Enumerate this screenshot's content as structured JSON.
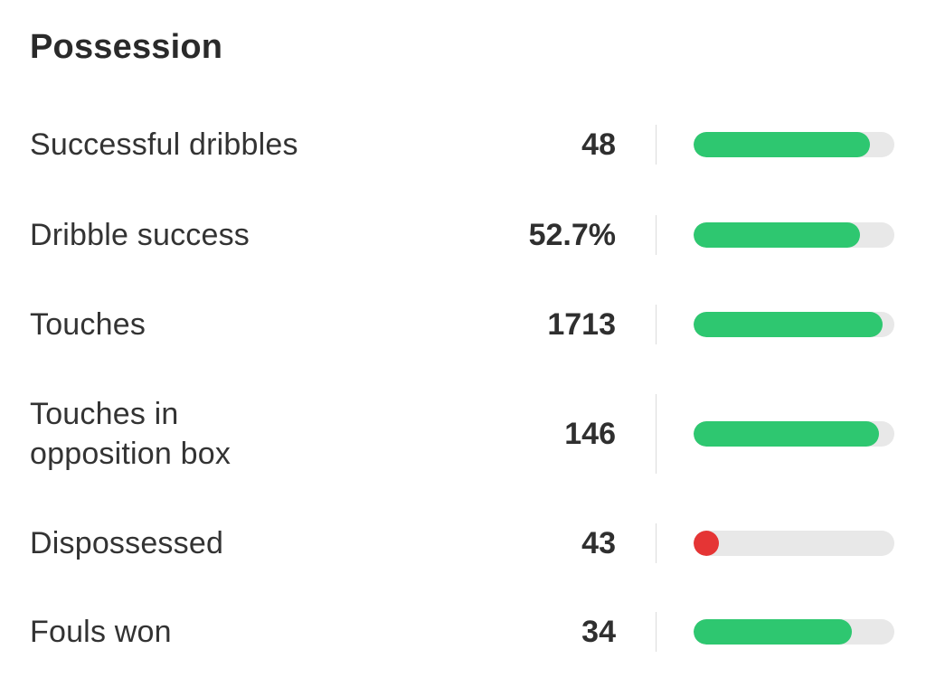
{
  "section": {
    "title": "Possession"
  },
  "colors": {
    "good": "#2ec770",
    "bad": "#e53535",
    "track": "#e8e8e8"
  },
  "stats": [
    {
      "label": "Successful dribbles",
      "value": "48",
      "fill": 0.88,
      "status": "good"
    },
    {
      "label": "Dribble success",
      "value": "52.7%",
      "fill": 0.83,
      "status": "good"
    },
    {
      "label": "Touches",
      "value": "1713",
      "fill": 0.94,
      "status": "good"
    },
    {
      "label": "Touches in opposition box",
      "value": "146",
      "fill": 0.925,
      "status": "good"
    },
    {
      "label": "Dispossessed",
      "value": "43",
      "fill": 0.12,
      "status": "bad"
    },
    {
      "label": "Fouls won",
      "value": "34",
      "fill": 0.79,
      "status": "good"
    }
  ]
}
